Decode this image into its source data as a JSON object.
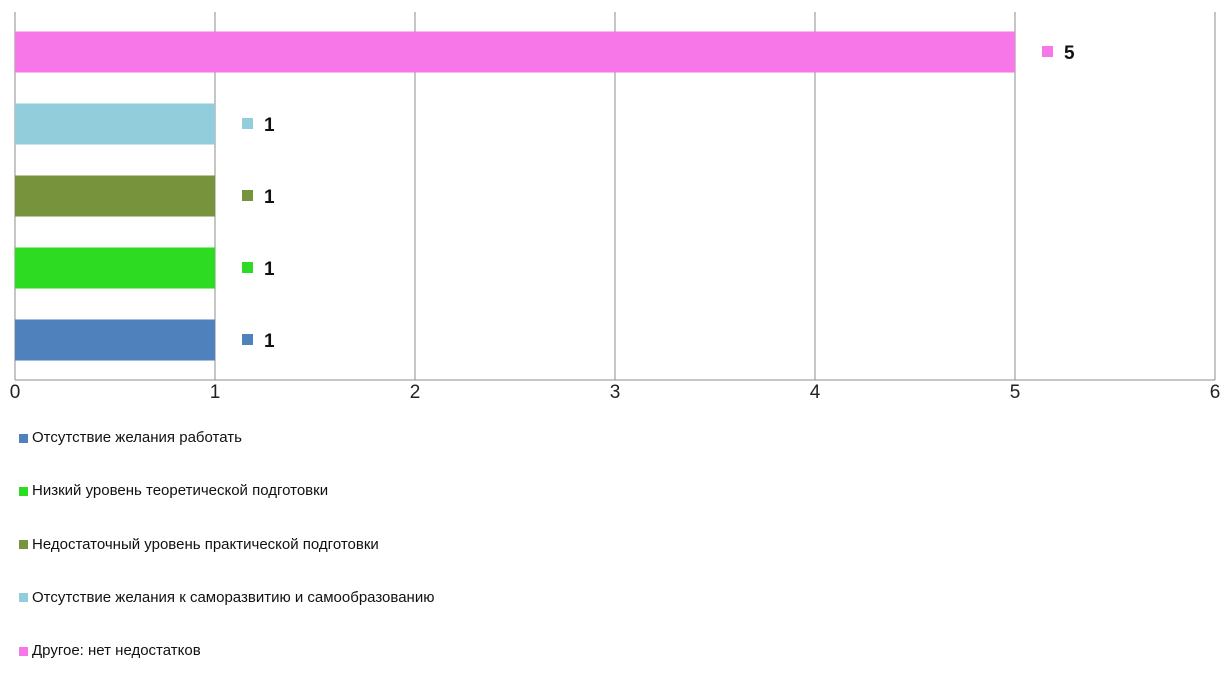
{
  "chart_data": {
    "type": "bar",
    "orientation": "horizontal",
    "title": "",
    "xlabel": "",
    "ylabel": "",
    "xlim": [
      0,
      6
    ],
    "x_ticks": [
      "0",
      "1",
      "2",
      "3",
      "4",
      "5",
      "6"
    ],
    "grid": true,
    "legend_position": "bottom-left",
    "data_labels": true,
    "series": [
      {
        "name": "Отсутствие желания работать",
        "value": 1,
        "color": "#4f81bd"
      },
      {
        "name": "Низкий уровень теоретической подготовки",
        "value": 1,
        "color": "#2ddb22"
      },
      {
        "name": "Недостаточный уровень практической подготовки",
        "value": 1,
        "color": "#77933c"
      },
      {
        "name": "Отсутствие желания к саморазвитию и самообразованию",
        "value": 1,
        "color": "#92cddc"
      },
      {
        "name": "Другое: нет недостатков",
        "value": 5,
        "color": "#f777e8"
      }
    ]
  }
}
